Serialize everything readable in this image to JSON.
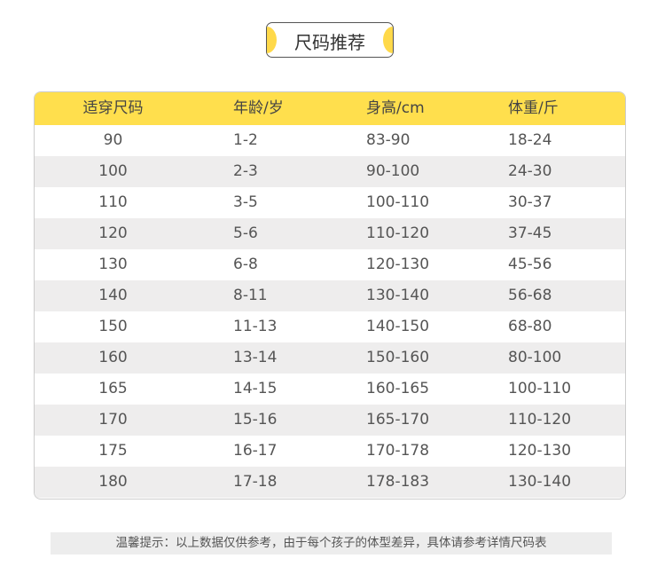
{
  "title": "尺码推荐",
  "table": {
    "headers": [
      "适穿尺码",
      "年龄/岁",
      "身高/cm",
      "体重/斤"
    ],
    "rows": [
      [
        "90",
        "1-2",
        "83-90",
        "18-24"
      ],
      [
        "100",
        "2-3",
        "90-100",
        "24-30"
      ],
      [
        "110",
        "3-5",
        "100-110",
        "30-37"
      ],
      [
        "120",
        "5-6",
        "110-120",
        "37-45"
      ],
      [
        "130",
        "6-8",
        "120-130",
        "45-56"
      ],
      [
        "140",
        "8-11",
        "130-140",
        "56-68"
      ],
      [
        "150",
        "11-13",
        "140-150",
        "68-80"
      ],
      [
        "160",
        "13-14",
        "150-160",
        "80-100"
      ],
      [
        "165",
        "14-15",
        "160-165",
        "100-110"
      ],
      [
        "170",
        "15-16",
        "165-170",
        "110-120"
      ],
      [
        "175",
        "16-17",
        "170-178",
        "120-130"
      ],
      [
        "180",
        "17-18",
        "178-183",
        "130-140"
      ]
    ]
  },
  "footer": "温馨提示：以上数据仅供参考，由于每个孩子的体型差异，具体请参考详情尺码表",
  "colors": {
    "accent": "#FFDF4D",
    "stripe": "#EEEDED"
  }
}
